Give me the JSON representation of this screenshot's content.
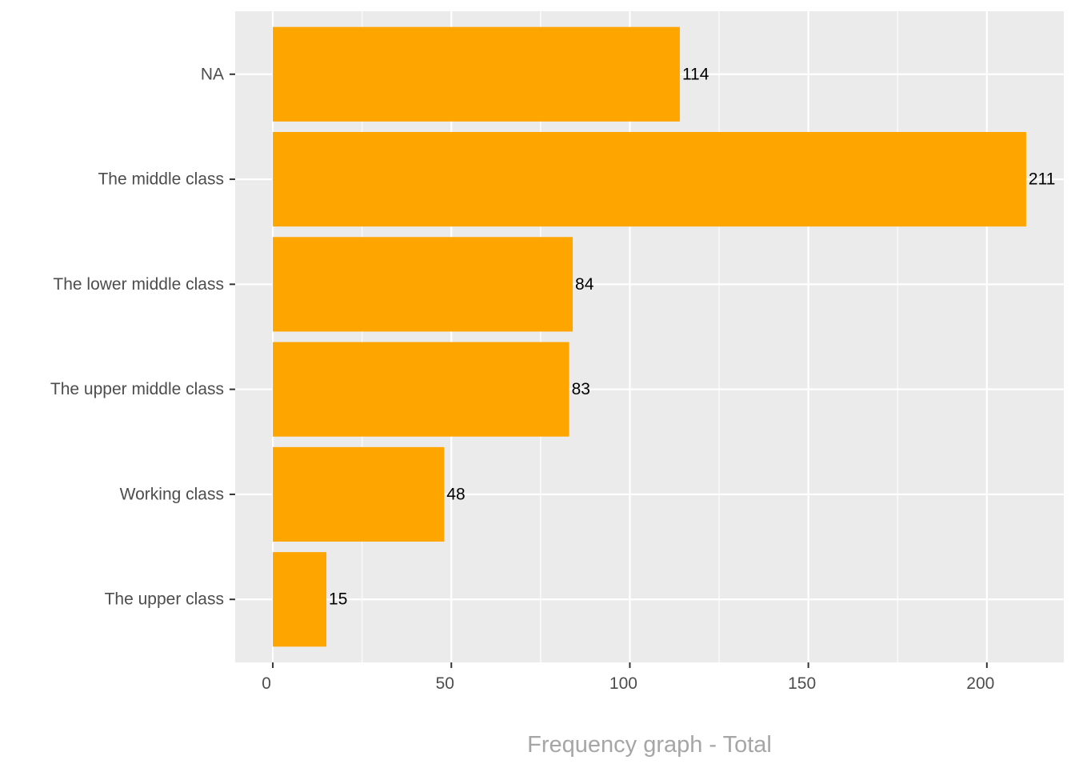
{
  "chart_data": {
    "type": "bar",
    "orientation": "horizontal",
    "categories": [
      "NA",
      "The middle class",
      "The lower middle class",
      "The upper middle class",
      "Working class",
      "The upper class"
    ],
    "values": [
      114,
      211,
      84,
      83,
      48,
      15
    ],
    "title": "",
    "xlabel": "Frequency graph - Total",
    "ylabel": "",
    "xlim": [
      -10.55,
      221.55
    ],
    "x_ticks": [
      0,
      50,
      100,
      150,
      200
    ],
    "x_tick_labels": [
      "0",
      "50",
      "100",
      "150",
      "200"
    ],
    "grid": true,
    "colors": {
      "bar": "#FFA500",
      "panel_background": "#EBEBEB",
      "grid_line": "#FFFFFF",
      "tick_label": "#4D4D4D",
      "data_label": "#000000",
      "axis_title": "#A6A6A6"
    }
  }
}
